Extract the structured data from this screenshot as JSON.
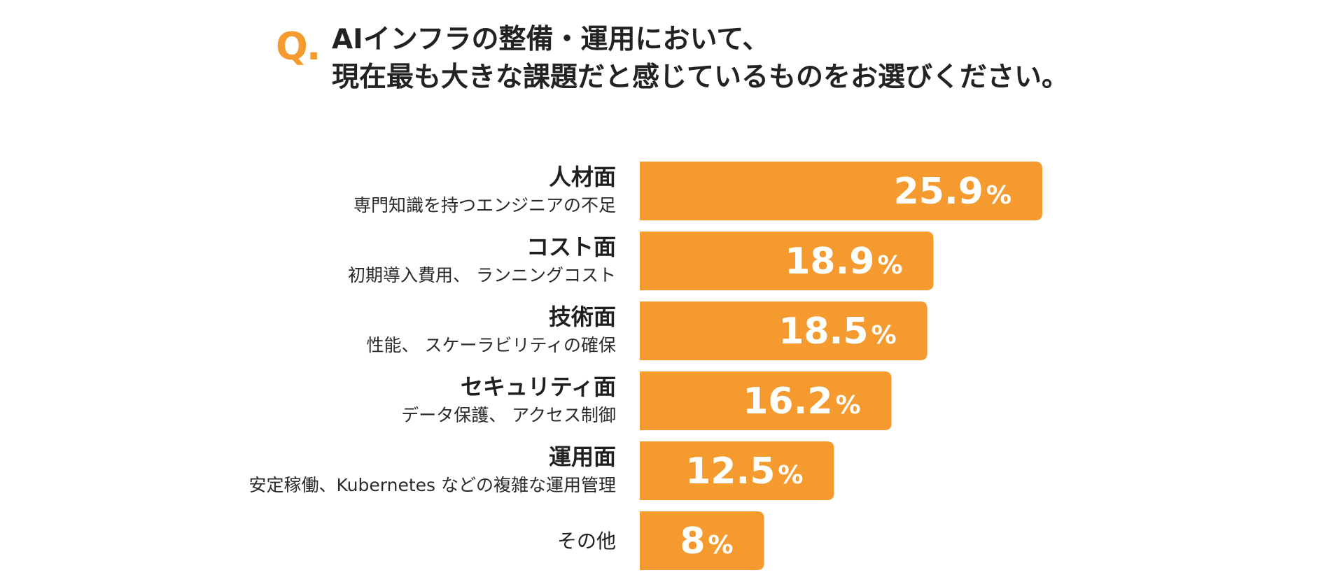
{
  "question": {
    "mark": "Q.",
    "line1": "AIインフラの整備・運用において、",
    "line2": "現在最も大きな課題だと感じているものをお選びください。"
  },
  "colors": {
    "accent": "#F49A2E",
    "text": "#1f1f1f"
  },
  "chart_data": {
    "type": "bar",
    "orientation": "horizontal",
    "unit": "%",
    "categories": [
      {
        "label": "人材面",
        "sublabel": "専門知識を持つエンジニアの不足",
        "value": 25.9,
        "display": "25.9"
      },
      {
        "label": "コスト面",
        "sublabel": "初期導入費用、 ランニングコスト",
        "value": 18.9,
        "display": "18.9"
      },
      {
        "label": "技術面",
        "sublabel": "性能、 スケーラビリティの確保",
        "value": 18.5,
        "display": "18.5"
      },
      {
        "label": "セキュリティ面",
        "sublabel": "データ保護、 アクセス制御",
        "value": 16.2,
        "display": "16.2"
      },
      {
        "label": "運用面",
        "sublabel": "安定稼働、Kubernetes などの複雑な運用管理",
        "value": 12.5,
        "display": "12.5"
      },
      {
        "label": "その他",
        "sublabel": "",
        "value": 8,
        "display": "8"
      }
    ],
    "grid": false,
    "legend": "none"
  }
}
